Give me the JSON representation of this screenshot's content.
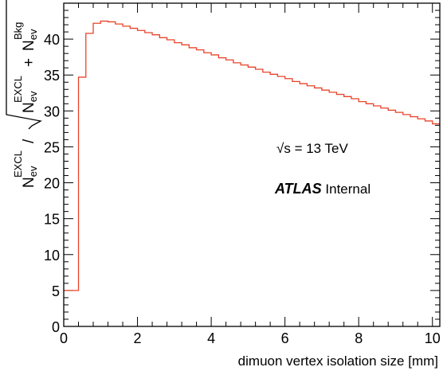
{
  "chart_data": {
    "type": "line",
    "style": "step-histogram",
    "line_color": "#e8432a",
    "xlabel": "dimuon vertex isolation size [mm]",
    "ylabel": {
      "numerator": "N",
      "numerator_sub": "ev",
      "numerator_sup": "EXCL",
      "separator": " / ",
      "root_term1": "N",
      "root_term1_sub": "ev",
      "root_term1_sup": "EXCL",
      "plus": " + ",
      "root_term2": "N",
      "root_term2_sub": "ev",
      "root_term2_sup": "Bkg"
    },
    "xlim": [
      0,
      10.2
    ],
    "ylim": [
      0,
      45
    ],
    "x_major_ticks": [
      0,
      2,
      4,
      6,
      8,
      10
    ],
    "x_tick_labels": [
      "0",
      "2",
      "4",
      "6",
      "8",
      "10"
    ],
    "y_major_ticks": [
      0,
      5,
      10,
      15,
      20,
      25,
      30,
      35,
      40
    ],
    "y_tick_labels": [
      "0",
      "5",
      "10",
      "15",
      "20",
      "25",
      "30",
      "35",
      "40"
    ],
    "bin_edges": [
      0.0,
      0.4,
      0.6,
      0.8,
      1.0,
      1.2,
      1.4,
      1.6,
      1.8,
      2.0,
      2.2,
      2.4,
      2.6,
      2.8,
      3.0,
      3.2,
      3.4,
      3.6,
      3.8,
      4.0,
      4.2,
      4.4,
      4.6,
      4.8,
      5.0,
      5.2,
      5.4,
      5.6,
      5.8,
      6.0,
      6.2,
      6.4,
      6.6,
      6.8,
      7.0,
      7.2,
      7.4,
      7.6,
      7.8,
      8.0,
      8.2,
      8.4,
      8.6,
      8.8,
      9.0,
      9.2,
      9.4,
      9.6,
      9.8,
      10.0,
      10.2
    ],
    "values": [
      5.0,
      34.7,
      40.8,
      42.2,
      42.5,
      42.4,
      42.1,
      41.8,
      41.5,
      41.2,
      40.9,
      40.6,
      40.2,
      39.9,
      39.5,
      39.2,
      38.8,
      38.5,
      38.1,
      37.8,
      37.4,
      37.1,
      36.7,
      36.4,
      36.1,
      35.8,
      35.4,
      35.1,
      34.8,
      34.5,
      34.1,
      33.8,
      33.5,
      33.2,
      32.9,
      32.6,
      32.3,
      32.0,
      31.7,
      31.3,
      31.0,
      30.7,
      30.4,
      30.1,
      29.8,
      29.5,
      29.2,
      28.9,
      28.6,
      28.2
    ],
    "annotations": {
      "energy_sqrt": "√s",
      "energy_rest": " = 13 TeV",
      "atlas_bold": "ATLAS",
      "atlas_rest": " Internal"
    },
    "grid": false,
    "legend": "none"
  }
}
